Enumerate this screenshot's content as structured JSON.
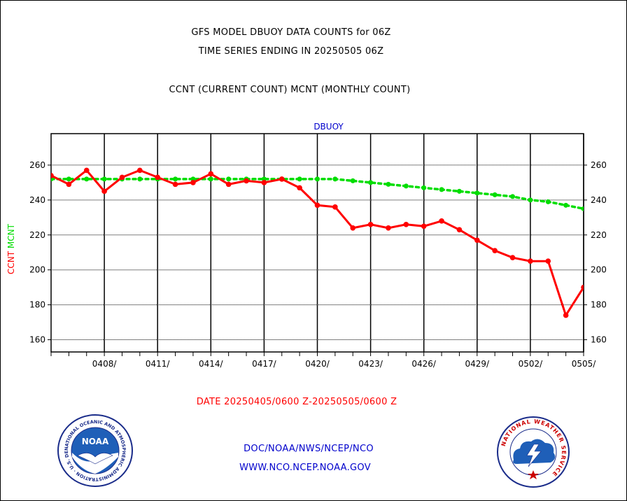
{
  "header": {
    "title_line1": "GFS MODEL DBUOY DATA COUNTS for 06Z",
    "title_line2": "TIME SERIES ENDING IN 20250505 06Z",
    "series_caption": "CCNT (CURRENT COUNT) MCNT (MONTHLY COUNT)"
  },
  "footer": {
    "date_range": "DATE 20250405/0600 Z-20250505/0600 Z",
    "org_line": "DOC/NOAA/NWS/NCEP/NCO",
    "url_line": "WWW.NCO.NCEP.NOAA.GOV"
  },
  "logos": {
    "noaa": {
      "icon": "noaa-seal-icon",
      "emblem_text": "NOAA",
      "ring_text": "NATIONAL OCEANIC AND ATMOSPHERIC ADMINISTRATION · U.S. DEPARTMENT OF COMMERCE"
    },
    "nws": {
      "icon": "nws-seal-icon",
      "ring_text": "NATIONAL WEATHER SERVICE"
    }
  },
  "colors": {
    "ccnt": "#ff0000",
    "mcnt": "#00dd00",
    "title": "#000000",
    "date": "#ff0000",
    "footer_text": "#0000cc"
  },
  "chart_data": {
    "type": "line",
    "title": "DBUOY",
    "ylabel_ccnt": "CCNT",
    "ylabel_mcnt": "MCNT",
    "xlabel": "",
    "x_start": "2025-04-05",
    "x_end": "2025-05-05",
    "x_tick_labels": [
      "0408/",
      "0411/",
      "0414/",
      "0417/",
      "0420/",
      "0423/",
      "0426/",
      "0429/",
      "0502/",
      "0505/"
    ],
    "x_tick_dates": [
      "2025-04-08",
      "2025-04-11",
      "2025-04-14",
      "2025-04-17",
      "2025-04-20",
      "2025-04-23",
      "2025-04-26",
      "2025-04-29",
      "2025-05-02",
      "2025-05-05"
    ],
    "y_ticks": [
      160,
      180,
      200,
      220,
      240,
      260
    ],
    "ylim": [
      153,
      278
    ],
    "grid": true,
    "series": [
      {
        "name": "CCNT",
        "color": "#ff0000",
        "style": "solid",
        "x": [
          "2025-04-05",
          "2025-04-06",
          "2025-04-07",
          "2025-04-08",
          "2025-04-09",
          "2025-04-10",
          "2025-04-11",
          "2025-04-12",
          "2025-04-13",
          "2025-04-14",
          "2025-04-15",
          "2025-04-16",
          "2025-04-17",
          "2025-04-18",
          "2025-04-19",
          "2025-04-20",
          "2025-04-21",
          "2025-04-22",
          "2025-04-23",
          "2025-04-24",
          "2025-04-25",
          "2025-04-26",
          "2025-04-27",
          "2025-04-28",
          "2025-04-29",
          "2025-04-30",
          "2025-05-01",
          "2025-05-02",
          "2025-05-03",
          "2025-05-04",
          "2025-05-05"
        ],
        "values": [
          254,
          249,
          257,
          245,
          253,
          257,
          253,
          249,
          250,
          255,
          249,
          251,
          250,
          252,
          247,
          237,
          236,
          224,
          226,
          224,
          226,
          225,
          228,
          223,
          217,
          211,
          207,
          205,
          205,
          174,
          190
        ]
      },
      {
        "name": "MCNT",
        "color": "#00dd00",
        "style": "dotted",
        "x": [
          "2025-04-05",
          "2025-04-06",
          "2025-04-07",
          "2025-04-08",
          "2025-04-09",
          "2025-04-10",
          "2025-04-11",
          "2025-04-12",
          "2025-04-13",
          "2025-04-14",
          "2025-04-15",
          "2025-04-16",
          "2025-04-17",
          "2025-04-18",
          "2025-04-19",
          "2025-04-20",
          "2025-04-21",
          "2025-04-22",
          "2025-04-23",
          "2025-04-24",
          "2025-04-25",
          "2025-04-26",
          "2025-04-27",
          "2025-04-28",
          "2025-04-29",
          "2025-04-30",
          "2025-05-01",
          "2025-05-02",
          "2025-05-03",
          "2025-05-04",
          "2025-05-05"
        ],
        "values": [
          252,
          252,
          252,
          252,
          252,
          252,
          252,
          252,
          252,
          252,
          252,
          252,
          252,
          252,
          252,
          252,
          252,
          251,
          250,
          249,
          248,
          247,
          246,
          245,
          244,
          243,
          242,
          240,
          239,
          237,
          235
        ]
      }
    ]
  }
}
